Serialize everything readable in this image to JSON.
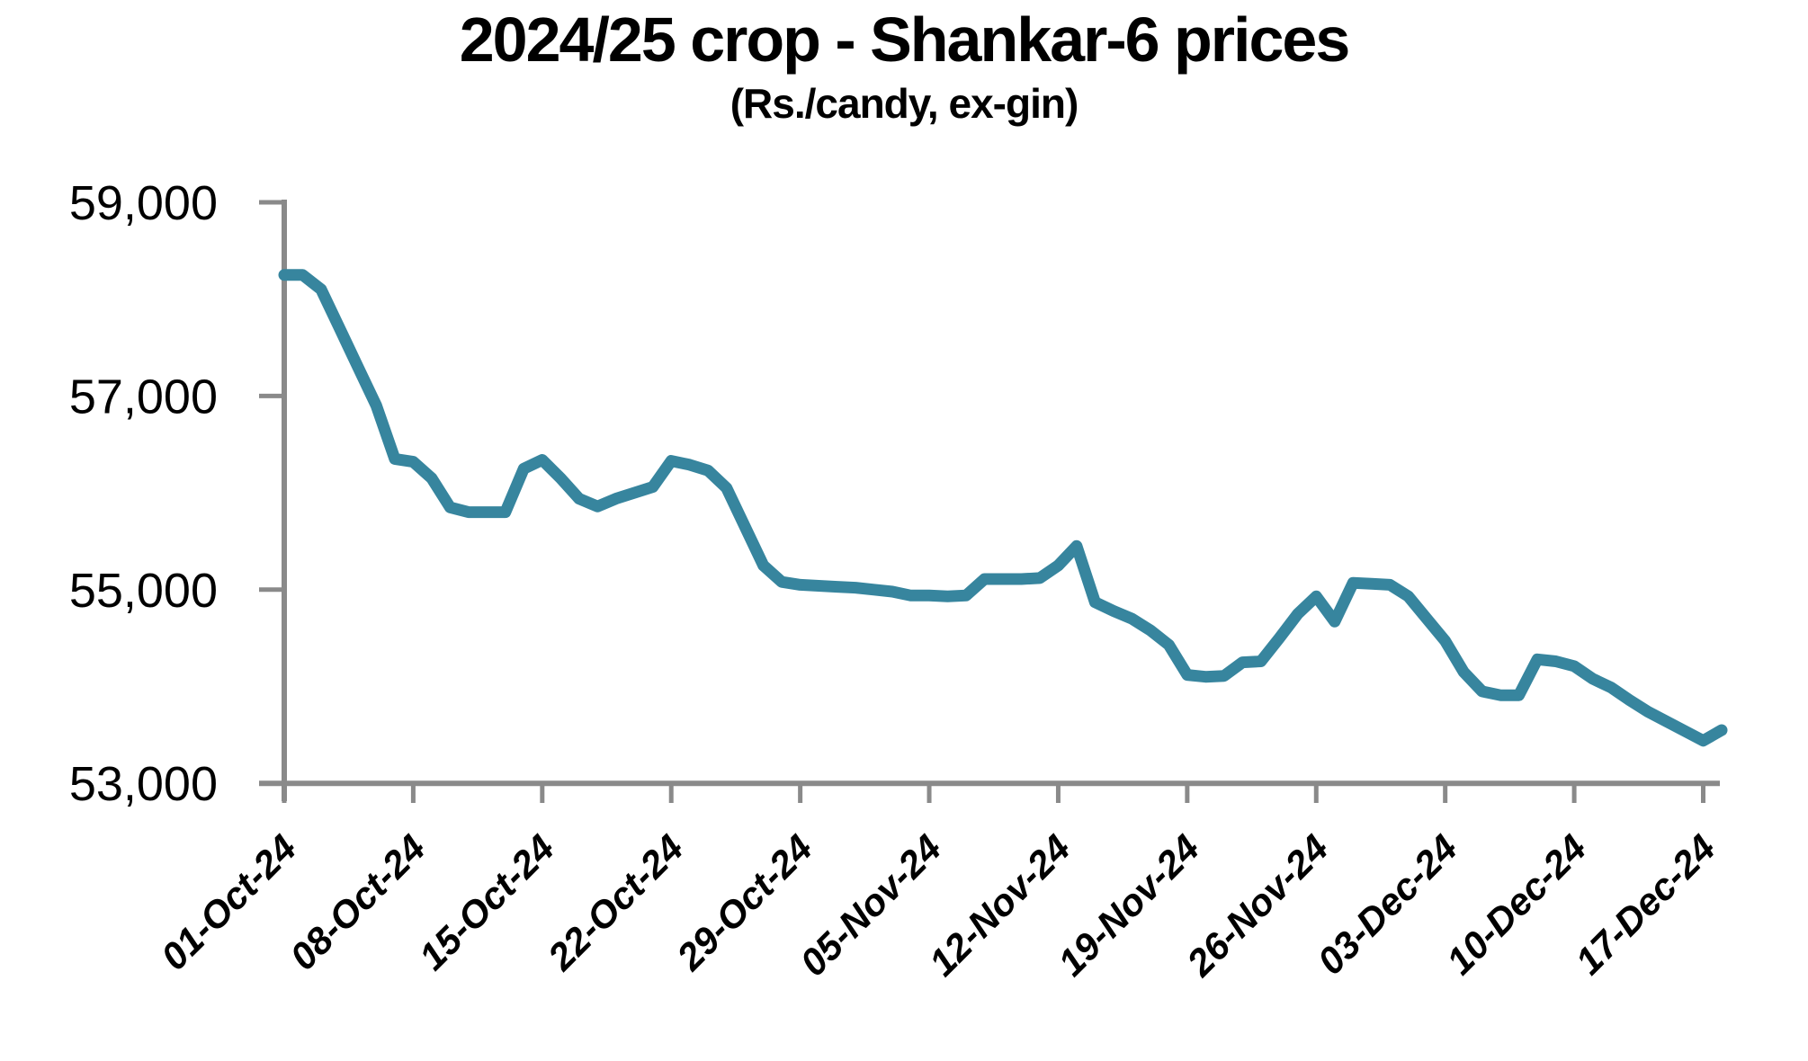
{
  "header": {
    "title": "2024/25 crop - Shankar-6 prices",
    "subtitle": "(Rs./candy, ex-gin)"
  },
  "chart_data": {
    "type": "line",
    "title": "2024/25 crop - Shankar-6 prices",
    "subtitle": "(Rs./candy, ex-gin)",
    "grid": false,
    "legend": false,
    "axis_color": "#8a8a8a",
    "text_color": "#000000",
    "y_axis": {
      "min": 53000,
      "max": 59000,
      "tick_values": [
        59000,
        57000,
        55000,
        53000
      ],
      "tick_labels": [
        "59,000",
        "57,000",
        "55,000",
        "53,000"
      ]
    },
    "x_axis": {
      "tick_every": 7,
      "tick_labels": [
        "01-Oct-24",
        "08-Oct-24",
        "15-Oct-24",
        "22-Oct-24",
        "29-Oct-24",
        "05-Nov-24",
        "12-Nov-24",
        "19-Nov-24",
        "26-Nov-24",
        "03-Dec-24",
        "10-Dec-24",
        "17-Dec-24"
      ]
    },
    "series": [
      {
        "name": "Shankar-6 price (Rs./candy, ex-gin)",
        "color": "#37859E",
        "dates": [
          "01-Oct-24",
          "02-Oct-24",
          "03-Oct-24",
          "04-Oct-24",
          "05-Oct-24",
          "06-Oct-24",
          "07-Oct-24",
          "08-Oct-24",
          "09-Oct-24",
          "10-Oct-24",
          "11-Oct-24",
          "12-Oct-24",
          "13-Oct-24",
          "14-Oct-24",
          "15-Oct-24",
          "16-Oct-24",
          "17-Oct-24",
          "18-Oct-24",
          "19-Oct-24",
          "20-Oct-24",
          "21-Oct-24",
          "22-Oct-24",
          "23-Oct-24",
          "24-Oct-24",
          "25-Oct-24",
          "26-Oct-24",
          "27-Oct-24",
          "28-Oct-24",
          "29-Oct-24",
          "30-Oct-24",
          "31-Oct-24",
          "01-Nov-24",
          "02-Nov-24",
          "03-Nov-24",
          "04-Nov-24",
          "05-Nov-24",
          "06-Nov-24",
          "07-Nov-24",
          "08-Nov-24",
          "09-Nov-24",
          "10-Nov-24",
          "11-Nov-24",
          "12-Nov-24",
          "13-Nov-24",
          "14-Nov-24",
          "15-Nov-24",
          "16-Nov-24",
          "17-Nov-24",
          "18-Nov-24",
          "19-Nov-24",
          "20-Nov-24",
          "21-Nov-24",
          "22-Nov-24",
          "23-Nov-24",
          "24-Nov-24",
          "25-Nov-24",
          "26-Nov-24",
          "27-Nov-24",
          "28-Nov-24",
          "29-Nov-24",
          "30-Nov-24",
          "01-Dec-24",
          "02-Dec-24",
          "03-Dec-24",
          "04-Dec-24",
          "05-Dec-24",
          "06-Dec-24",
          "07-Dec-24",
          "08-Dec-24",
          "09-Dec-24",
          "10-Dec-24",
          "11-Dec-24",
          "12-Dec-24",
          "13-Dec-24",
          "14-Dec-24",
          "15-Dec-24",
          "16-Dec-24",
          "17-Dec-24",
          "18-Dec-24"
        ],
        "values": [
          58250,
          58250,
          58100,
          57700,
          57300,
          56900,
          56350,
          56320,
          56150,
          55850,
          55800,
          55800,
          55800,
          56250,
          56340,
          56150,
          55940,
          55860,
          55940,
          56000,
          56060,
          56330,
          56290,
          56230,
          56050,
          55650,
          55250,
          55080,
          55050,
          55040,
          55030,
          55020,
          55000,
          54980,
          54940,
          54940,
          54930,
          54940,
          55110,
          55110,
          55110,
          55120,
          55250,
          55450,
          54870,
          54780,
          54700,
          54580,
          54430,
          54120,
          54100,
          54110,
          54250,
          54260,
          54500,
          54750,
          54930,
          54670,
          55070,
          55060,
          55050,
          54930,
          54700,
          54470,
          54150,
          53950,
          53910,
          53910,
          54280,
          54260,
          54210,
          54080,
          53990,
          53860,
          53740,
          53640,
          53540,
          53440,
          53550
        ]
      }
    ]
  }
}
